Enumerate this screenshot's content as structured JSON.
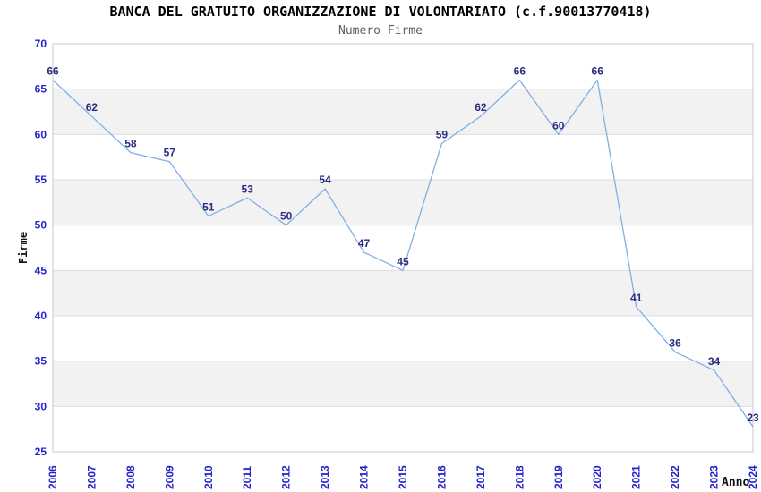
{
  "chart_data": {
    "type": "line",
    "title": "BANCA DEL GRATUITO ORGANIZZAZIONE DI VOLONTARIATO (c.f.90013770418)",
    "subtitle": "Numero Firme",
    "xlabel": "Anno",
    "ylabel": "Firme",
    "x": [
      "2006",
      "2007",
      "2008",
      "2009",
      "2010",
      "2011",
      "2012",
      "2013",
      "2014",
      "2015",
      "2016",
      "2017",
      "2018",
      "2019",
      "2020",
      "2021",
      "2022",
      "2023",
      "2024"
    ],
    "values": [
      66,
      62,
      58,
      57,
      51,
      53,
      50,
      54,
      47,
      45,
      59,
      62,
      66,
      60,
      66,
      41,
      36,
      34,
      23
    ],
    "data_labels_shown": true,
    "ylim": [
      25,
      70
    ],
    "ytick_step": 5,
    "yticks": [
      25,
      30,
      35,
      40,
      45,
      50,
      55,
      60,
      65,
      70
    ],
    "grid": true,
    "alternating_bands": true,
    "legend": "none",
    "colors": {
      "line": "#7FAFE4",
      "data_label": "#2B2B80",
      "tick_label": "#2323CD",
      "title": "#000000",
      "subtitle": "#606060",
      "band": "#F2F2F2",
      "gridline": "#DCDCDC",
      "border": "#C8C8C8",
      "background": "#FFFFFF"
    }
  }
}
